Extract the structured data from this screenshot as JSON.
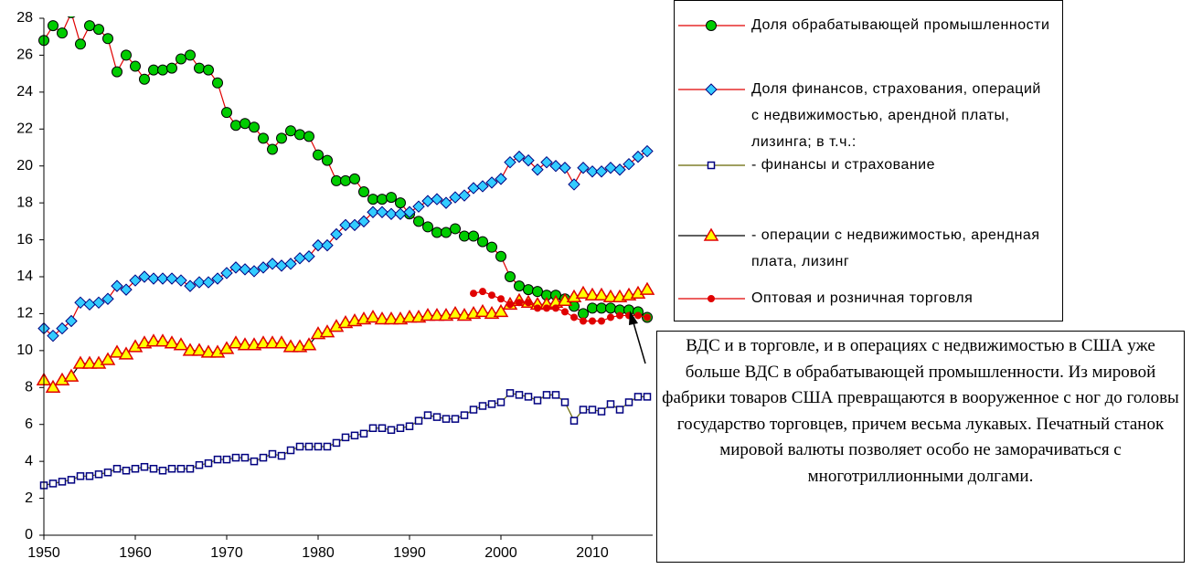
{
  "chart_data": {
    "type": "line",
    "x": [
      1950,
      1951,
      1952,
      1953,
      1954,
      1955,
      1956,
      1957,
      1958,
      1959,
      1960,
      1961,
      1962,
      1963,
      1964,
      1965,
      1966,
      1967,
      1968,
      1969,
      1970,
      1971,
      1972,
      1973,
      1974,
      1975,
      1976,
      1977,
      1978,
      1979,
      1980,
      1981,
      1982,
      1983,
      1984,
      1985,
      1986,
      1987,
      1988,
      1989,
      1990,
      1991,
      1992,
      1993,
      1994,
      1995,
      1996,
      1997,
      1998,
      1999,
      2000,
      2001,
      2002,
      2003,
      2004,
      2005,
      2006,
      2007,
      2008,
      2009,
      2010,
      2011,
      2012,
      2013,
      2014,
      2015,
      2016
    ],
    "xlim": [
      1950,
      2016.6
    ],
    "xticks": [
      1950,
      1960,
      1970,
      1980,
      1990,
      2000,
      2010
    ],
    "ylim": [
      0,
      28
    ],
    "yticks": [
      0,
      2,
      4,
      6,
      8,
      10,
      12,
      14,
      16,
      18,
      20,
      22,
      24,
      26,
      28
    ],
    "grid": false,
    "legend": "right",
    "series": [
      {
        "name": "Доля обрабатывающей промышленности",
        "color": "#e00000",
        "marker": "circle",
        "marker_color": "#00cc00",
        "values": [
          26.8,
          27.6,
          27.2,
          28.3,
          26.6,
          27.6,
          27.4,
          26.9,
          25.1,
          26.0,
          25.4,
          24.7,
          25.2,
          25.2,
          25.3,
          25.8,
          26.0,
          25.3,
          25.2,
          24.5,
          22.9,
          22.2,
          22.3,
          22.1,
          21.5,
          20.9,
          21.5,
          21.9,
          21.7,
          21.6,
          20.6,
          20.3,
          19.2,
          19.2,
          19.3,
          18.6,
          18.2,
          18.2,
          18.3,
          18.0,
          17.4,
          17.0,
          16.7,
          16.4,
          16.4,
          16.6,
          16.2,
          16.2,
          15.9,
          15.6,
          15.1,
          14.0,
          13.5,
          13.3,
          13.2,
          13.0,
          13.0,
          12.8,
          12.4,
          12.0,
          12.3,
          12.3,
          12.3,
          12.2,
          12.2,
          12.1,
          11.8
        ]
      },
      {
        "name": "Доля финансов, страхования, операций с недвижимостью, арендной платы, лизинга; в т.ч.:",
        "color": "#e00000",
        "marker": "diamond",
        "marker_color": "#33ccff",
        "values": [
          11.2,
          10.8,
          11.2,
          11.6,
          12.6,
          12.5,
          12.6,
          12.8,
          13.5,
          13.3,
          13.8,
          14.0,
          13.9,
          13.9,
          13.9,
          13.8,
          13.5,
          13.7,
          13.7,
          13.9,
          14.2,
          14.5,
          14.4,
          14.3,
          14.5,
          14.7,
          14.6,
          14.7,
          15.0,
          15.1,
          15.7,
          15.7,
          16.3,
          16.8,
          16.8,
          17.0,
          17.5,
          17.5,
          17.4,
          17.4,
          17.5,
          17.8,
          18.1,
          18.2,
          18.0,
          18.3,
          18.4,
          18.8,
          18.9,
          19.1,
          19.3,
          20.2,
          20.5,
          20.3,
          19.8,
          20.2,
          20.0,
          19.9,
          19.0,
          19.9,
          19.7,
          19.7,
          19.9,
          19.8,
          20.1,
          20.5,
          20.8
        ]
      },
      {
        "name": "- финансы и страхование",
        "color": "#666600",
        "marker": "square",
        "marker_color": "#ffffff",
        "values": [
          2.7,
          2.8,
          2.9,
          3.0,
          3.2,
          3.2,
          3.3,
          3.4,
          3.6,
          3.5,
          3.6,
          3.7,
          3.6,
          3.5,
          3.6,
          3.6,
          3.6,
          3.8,
          3.9,
          4.1,
          4.1,
          4.2,
          4.2,
          4.0,
          4.2,
          4.4,
          4.3,
          4.6,
          4.8,
          4.8,
          4.8,
          4.8,
          5.0,
          5.3,
          5.4,
          5.5,
          5.8,
          5.8,
          5.7,
          5.8,
          5.9,
          6.2,
          6.5,
          6.4,
          6.3,
          6.3,
          6.5,
          6.8,
          7.0,
          7.1,
          7.2,
          7.7,
          7.6,
          7.5,
          7.3,
          7.6,
          7.6,
          7.2,
          6.2,
          6.8,
          6.8,
          6.7,
          7.1,
          6.8,
          7.2,
          7.5,
          7.5
        ]
      },
      {
        "name": "- операции с недвижимостью, арендная плата, лизинг",
        "color": "#000000",
        "marker": "triangle",
        "marker_color": "#ffff00",
        "values": [
          8.4,
          8.0,
          8.4,
          8.6,
          9.3,
          9.3,
          9.3,
          9.5,
          9.9,
          9.8,
          10.2,
          10.4,
          10.5,
          10.5,
          10.4,
          10.3,
          10.0,
          10.0,
          9.9,
          9.9,
          10.1,
          10.4,
          10.3,
          10.3,
          10.4,
          10.4,
          10.4,
          10.2,
          10.2,
          10.3,
          10.9,
          11.0,
          11.3,
          11.5,
          11.6,
          11.7,
          11.8,
          11.7,
          11.7,
          11.7,
          11.8,
          11.8,
          11.9,
          11.9,
          11.9,
          12.0,
          11.9,
          12.0,
          12.1,
          12.0,
          12.1,
          12.5,
          12.7,
          12.6,
          12.5,
          12.5,
          12.6,
          12.7,
          12.9,
          13.1,
          13.0,
          13.0,
          12.9,
          12.9,
          13.0,
          13.1,
          13.3
        ]
      },
      {
        "name": "Оптовая и розничная торговля",
        "color": "#e00000",
        "marker": "dot",
        "marker_color": "#e00000",
        "values": [
          null,
          null,
          null,
          null,
          null,
          null,
          null,
          null,
          null,
          null,
          null,
          null,
          null,
          null,
          null,
          null,
          null,
          null,
          null,
          null,
          null,
          null,
          null,
          null,
          null,
          null,
          null,
          null,
          null,
          null,
          null,
          null,
          null,
          null,
          null,
          null,
          null,
          null,
          null,
          null,
          null,
          null,
          null,
          null,
          null,
          null,
          null,
          13.1,
          13.2,
          13.0,
          12.8,
          12.5,
          12.6,
          12.6,
          12.3,
          12.3,
          12.3,
          12.1,
          11.8,
          11.6,
          11.6,
          11.6,
          11.8,
          11.9,
          11.9,
          11.9,
          11.8
        ]
      }
    ],
    "annotation": "ВДС и в торговле, и в операциях с недвижимостью в США уже больше ВДС в обрабатывающей промышленности. Из мировой фабрики товаров США превращаются в вооруженное с ног до головы государство торговцев, причем весьма лукавых. Печатный станок мировой валюты позволяет особо не заморачиваться с многотриллионными долгами."
  }
}
